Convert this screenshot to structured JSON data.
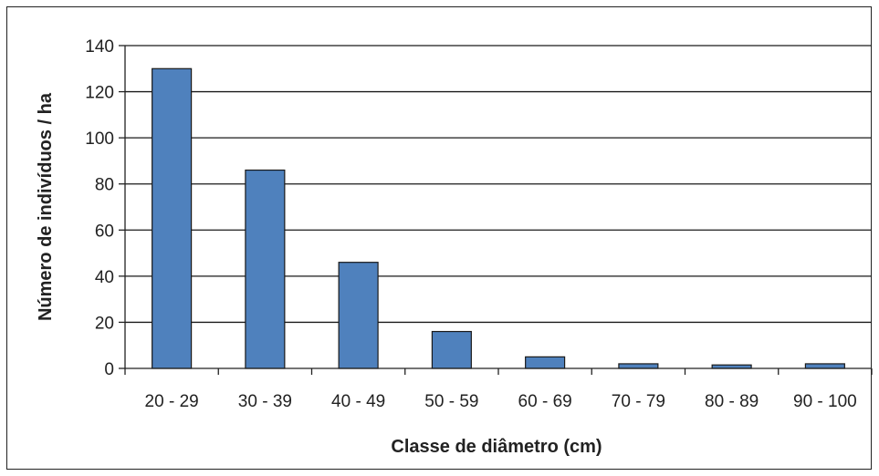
{
  "chart_data": {
    "type": "bar",
    "title": "",
    "xlabel": "Classe de diâmetro (cm)",
    "ylabel": "Número de indivíduos / ha",
    "categories": [
      "20 - 29",
      "30 - 39",
      "40 - 49",
      "50 -  59",
      "60 - 69",
      "70 - 79",
      "80 - 89",
      "90 - 100"
    ],
    "values": [
      130,
      86,
      46,
      16,
      5,
      2,
      1.5,
      2
    ],
    "ylim": [
      0,
      140
    ],
    "yticks": [
      "0",
      "20",
      "40",
      "60",
      "80",
      "100",
      "120",
      "140"
    ],
    "grid": true,
    "legend": "none",
    "bar_color": "#4f81bd",
    "bar_edge_color": "#1a1a1a",
    "grid_color": "#1a1a1a"
  }
}
